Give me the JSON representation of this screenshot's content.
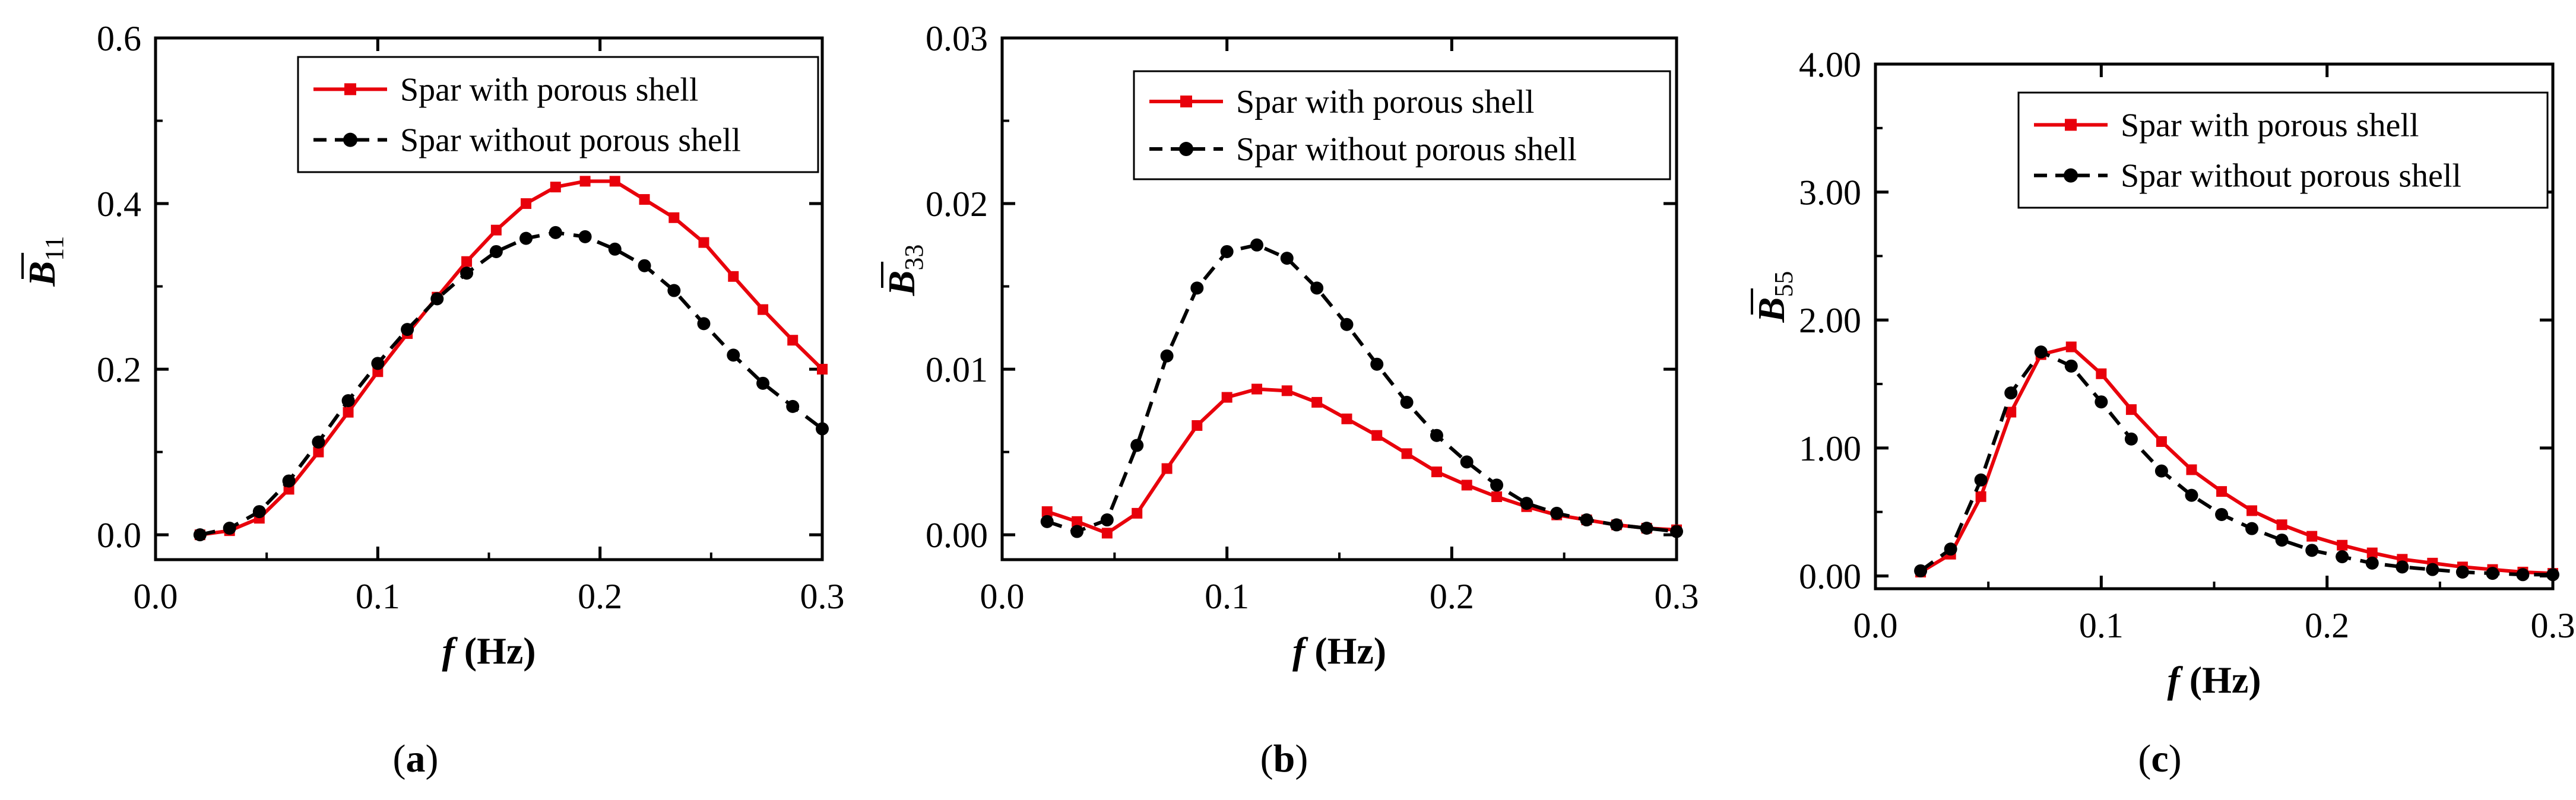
{
  "chart_data": [
    {
      "type": "line",
      "panel": "a",
      "caption_open": "(",
      "caption_letter": "a",
      "caption_close": ")",
      "ylabel_symbol": "B",
      "ylabel_sub": "11",
      "xlabel_symbol": "f",
      "xlabel_unit": " (Hz)",
      "xlim": [
        0.0,
        0.3
      ],
      "ylim": [
        -0.03,
        0.6
      ],
      "xticks": [
        0.0,
        0.1,
        0.2,
        0.3
      ],
      "xtick_labels": [
        "0.0",
        "0.1",
        "0.2",
        "0.3"
      ],
      "yticks": [
        0.0,
        0.2,
        0.4,
        0.6
      ],
      "ytick_labels": [
        "0.0",
        "0.2",
        "0.4",
        "0.6"
      ],
      "legend_position": "top-right",
      "series": [
        {
          "name": "Spar with porous shell",
          "color": "#e8000b",
          "line": "solid",
          "marker": "square",
          "x": [
            0.02,
            0.0333,
            0.0467,
            0.06,
            0.0733,
            0.0867,
            0.1,
            0.1133,
            0.1267,
            0.14,
            0.1533,
            0.1667,
            0.18,
            0.1933,
            0.2067,
            0.22,
            0.2333,
            0.2467,
            0.26,
            0.2733,
            0.2867,
            0.3
          ],
          "y": [
            0.0,
            0.005,
            0.02,
            0.055,
            0.1,
            0.148,
            0.197,
            0.243,
            0.287,
            0.33,
            0.368,
            0.4,
            0.42,
            0.427,
            0.427,
            0.405,
            0.383,
            0.353,
            0.312,
            0.272,
            0.235,
            0.2
          ]
        },
        {
          "name": "Spar without porous shell",
          "color": "#000000",
          "line": "dashed",
          "marker": "circle",
          "x": [
            0.02,
            0.0333,
            0.0467,
            0.06,
            0.0733,
            0.0867,
            0.1,
            0.1133,
            0.1267,
            0.14,
            0.1533,
            0.1667,
            0.18,
            0.1933,
            0.2067,
            0.22,
            0.2333,
            0.2467,
            0.26,
            0.2733,
            0.2867,
            0.3
          ],
          "y": [
            0.0,
            0.008,
            0.028,
            0.065,
            0.112,
            0.162,
            0.207,
            0.248,
            0.285,
            0.316,
            0.342,
            0.358,
            0.365,
            0.36,
            0.345,
            0.325,
            0.295,
            0.255,
            0.217,
            0.183,
            0.155,
            0.128
          ]
        }
      ]
    },
    {
      "type": "line",
      "panel": "b",
      "caption_open": "(",
      "caption_letter": "b",
      "caption_close": ")",
      "ylabel_symbol": "B",
      "ylabel_sub": "33",
      "xlabel_symbol": "f",
      "xlabel_unit": " (Hz)",
      "xlim": [
        0.0,
        0.3
      ],
      "ylim": [
        -0.0015,
        0.03
      ],
      "xticks": [
        0.0,
        0.1,
        0.2,
        0.3
      ],
      "xtick_labels": [
        "0.0",
        "0.1",
        "0.2",
        "0.3"
      ],
      "yticks": [
        0.0,
        0.01,
        0.02,
        0.03
      ],
      "ytick_labels": [
        "0.00",
        "0.01",
        "0.02",
        "0.03"
      ],
      "legend_position": "top-right",
      "series": [
        {
          "name": "Spar with porous shell",
          "color": "#e8000b",
          "line": "solid",
          "marker": "square",
          "x": [
            0.02,
            0.0333,
            0.0467,
            0.06,
            0.0733,
            0.0867,
            0.1,
            0.1133,
            0.1267,
            0.14,
            0.1533,
            0.1667,
            0.18,
            0.1933,
            0.2067,
            0.22,
            0.2333,
            0.2467,
            0.26,
            0.2733,
            0.2867,
            0.3
          ],
          "y": [
            0.0014,
            0.0008,
            0.0001,
            0.0013,
            0.004,
            0.0066,
            0.0083,
            0.0088,
            0.0087,
            0.008,
            0.007,
            0.006,
            0.0049,
            0.0038,
            0.003,
            0.0023,
            0.0017,
            0.0012,
            0.0009,
            0.0006,
            0.0004,
            0.0003
          ]
        },
        {
          "name": "Spar without porous shell",
          "color": "#000000",
          "line": "dashed",
          "marker": "circle",
          "x": [
            0.02,
            0.0333,
            0.0467,
            0.06,
            0.0733,
            0.0867,
            0.1,
            0.1133,
            0.1267,
            0.14,
            0.1533,
            0.1667,
            0.18,
            0.1933,
            0.2067,
            0.22,
            0.2333,
            0.2467,
            0.26,
            0.2733,
            0.2867,
            0.3
          ],
          "y": [
            0.0008,
            0.0002,
            0.0009,
            0.0054,
            0.0108,
            0.0149,
            0.0171,
            0.0175,
            0.0167,
            0.0149,
            0.0127,
            0.0103,
            0.008,
            0.006,
            0.0044,
            0.003,
            0.0019,
            0.0013,
            0.0009,
            0.0006,
            0.0004,
            0.0002
          ]
        }
      ]
    },
    {
      "type": "line",
      "panel": "c",
      "caption_open": "(",
      "caption_letter": "c",
      "caption_close": ")",
      "ylabel_symbol": "B",
      "ylabel_sub": "55",
      "xlabel_symbol": "f",
      "xlabel_unit": " (Hz)",
      "xlim": [
        0.0,
        0.3
      ],
      "ylim": [
        -0.1,
        4.0
      ],
      "xticks": [
        0.0,
        0.1,
        0.2,
        0.3
      ],
      "xtick_labels": [
        "0.0",
        "0.1",
        "0.2",
        "0.3"
      ],
      "yticks": [
        0.0,
        1.0,
        2.0,
        3.0,
        4.0
      ],
      "ytick_labels": [
        "0.00",
        "1.00",
        "2.00",
        "3.00",
        "4.00"
      ],
      "legend_position": "top-right",
      "series": [
        {
          "name": "Spar with porous shell",
          "color": "#e8000b",
          "line": "solid",
          "marker": "square",
          "x": [
            0.02,
            0.0333,
            0.0467,
            0.06,
            0.0733,
            0.0867,
            0.1,
            0.1133,
            0.1267,
            0.14,
            0.1533,
            0.1667,
            0.18,
            0.1933,
            0.2067,
            0.22,
            0.2333,
            0.2467,
            0.26,
            0.2733,
            0.2867,
            0.3
          ],
          "y": [
            0.03,
            0.17,
            0.62,
            1.28,
            1.73,
            1.79,
            1.58,
            1.3,
            1.05,
            0.83,
            0.66,
            0.51,
            0.4,
            0.31,
            0.24,
            0.18,
            0.13,
            0.1,
            0.07,
            0.05,
            0.03,
            0.02
          ]
        },
        {
          "name": "Spar without porous shell",
          "color": "#000000",
          "line": "dashed",
          "marker": "circle",
          "x": [
            0.02,
            0.0333,
            0.0467,
            0.06,
            0.0733,
            0.0867,
            0.1,
            0.1133,
            0.1267,
            0.14,
            0.1533,
            0.1667,
            0.18,
            0.1933,
            0.2067,
            0.22,
            0.2333,
            0.2467,
            0.26,
            0.2733,
            0.2867,
            0.3
          ],
          "y": [
            0.04,
            0.21,
            0.75,
            1.43,
            1.75,
            1.64,
            1.36,
            1.07,
            0.82,
            0.63,
            0.48,
            0.37,
            0.28,
            0.2,
            0.15,
            0.1,
            0.07,
            0.05,
            0.03,
            0.02,
            0.01,
            0.01
          ]
        }
      ]
    }
  ]
}
